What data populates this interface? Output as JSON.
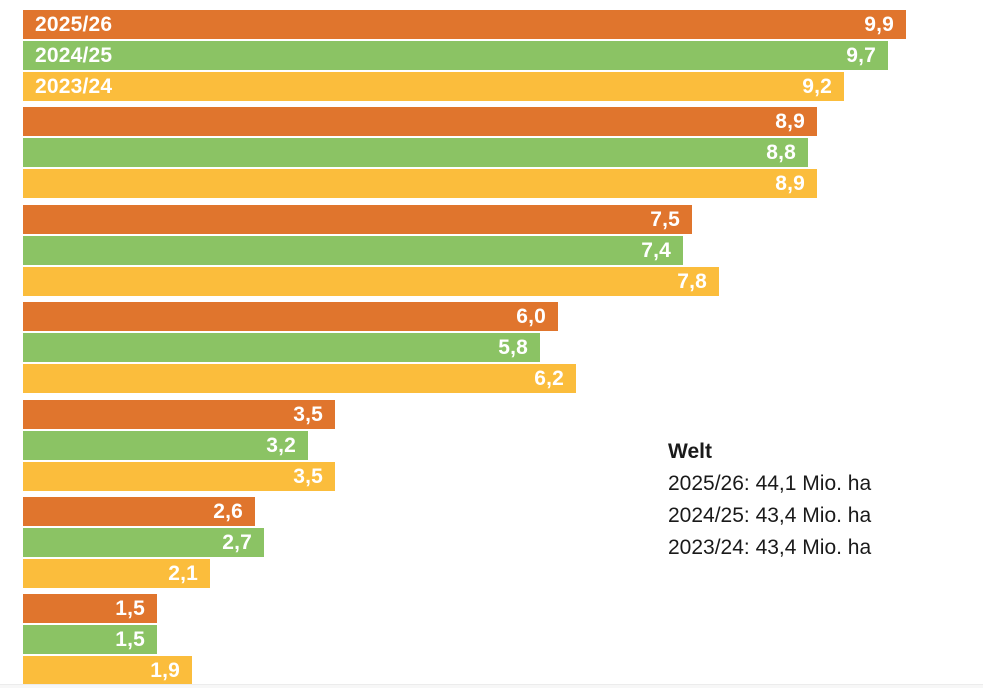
{
  "chart_data": {
    "type": "bar",
    "orientation": "horizontal",
    "title": "",
    "xlabel": "",
    "ylabel": "",
    "unit": "Mio. ha",
    "decimal_separator": ",",
    "grid": false,
    "value_labels_position": "inside-right",
    "xlim": [
      0,
      10.76
    ],
    "groups": 7,
    "series": [
      {
        "name": "2025/26",
        "color": "#E0752D",
        "values": [
          9.9,
          8.9,
          7.5,
          6.0,
          3.5,
          2.6,
          1.5
        ]
      },
      {
        "name": "2024/25",
        "color": "#8BC364",
        "values": [
          9.7,
          8.8,
          7.4,
          5.8,
          3.2,
          2.7,
          1.5
        ]
      },
      {
        "name": "2023/24",
        "color": "#FBBD3C",
        "values": [
          9.2,
          8.9,
          7.8,
          6.2,
          3.5,
          2.1,
          1.9
        ]
      }
    ],
    "series_labels_shown_in_first_group": true,
    "legend_position": "right-middle"
  },
  "annotation": {
    "title": "Welt",
    "lines": [
      "2025/26: 44,1 Mio. ha",
      "2024/25: 43,4 Mio. ha",
      "2023/24: 43,4 Mio. ha"
    ]
  },
  "colors": {
    "series_2025_26": "#E0752D",
    "series_2024_25": "#8BC364",
    "series_2023_24": "#FBBD3C",
    "bar_text": "#FFFFFF",
    "annotation_text": "#1A1A1A",
    "background": "#FFFFFF",
    "bottom_strip": "#F7F7F7"
  }
}
